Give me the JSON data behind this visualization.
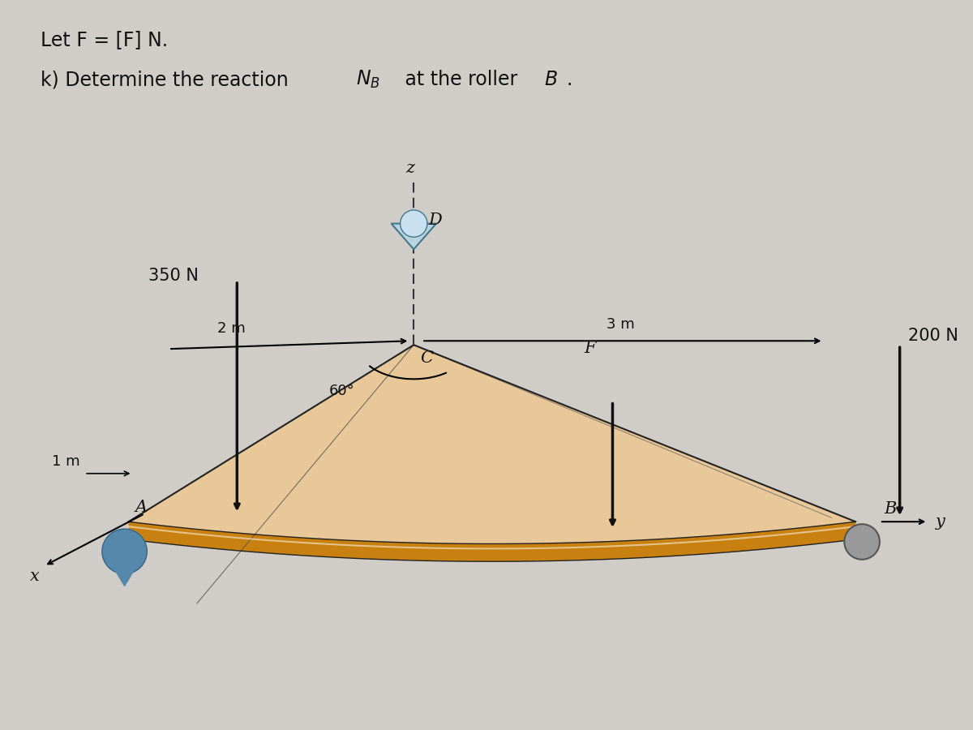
{
  "bg_color": "#d0cdc8",
  "plate_tan": "#d4a96a",
  "plate_light": "#e8c898",
  "plate_edge": "#c88010",
  "plate_edge_dark": "#8a5a00",
  "black": "#111111",
  "pin_blue": "#5588aa",
  "roller_gray": "#999999",
  "text_color": "#111111",
  "line1": "Let F = [F] N.",
  "line2": "k) Determine the reaction N",
  "line2_sub": "B",
  "line2_end": " at the roller B.",
  "lbl_350N": "350 N",
  "lbl_200N": "200 N",
  "lbl_2m": "2 m",
  "lbl_1m": "1 m",
  "lbl_3m": "3 m",
  "lbl_60": "60°",
  "lbl_A": "A",
  "lbl_B": "B",
  "lbl_C": "C",
  "lbl_D": "D",
  "lbl_F": "F",
  "lbl_x": "x",
  "lbl_y": "y",
  "lbl_z": "z"
}
